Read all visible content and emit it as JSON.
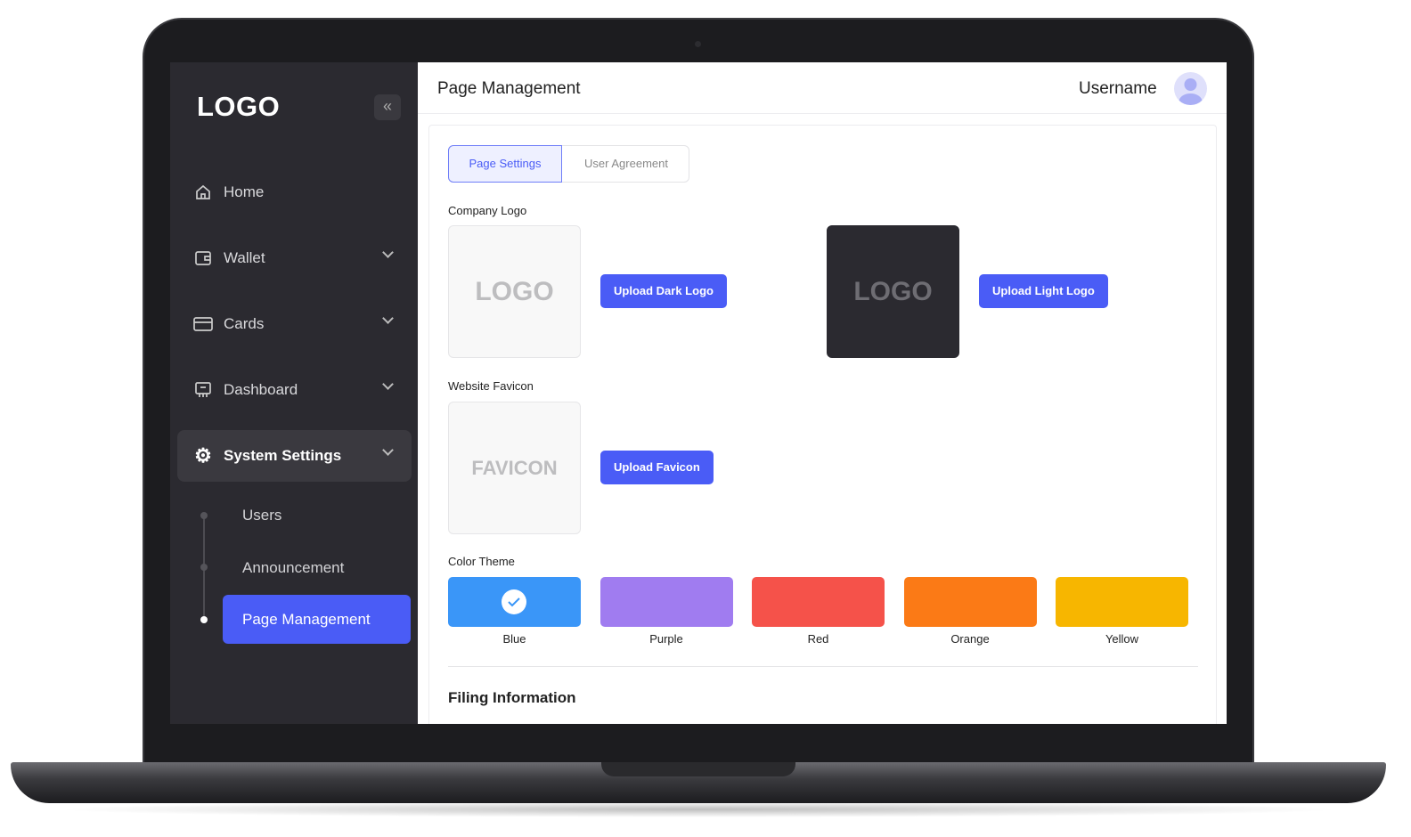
{
  "sidebar": {
    "logo": "LOGO",
    "collapse_icon": "double-chevron-left-icon",
    "items": [
      {
        "label": "Home",
        "icon": "home-icon"
      },
      {
        "label": "Wallet",
        "icon": "wallet-icon"
      },
      {
        "label": "Cards",
        "icon": "credit-card-icon"
      },
      {
        "label": "Dashboard",
        "icon": "presentation-board-icon"
      },
      {
        "label": "System Settings",
        "icon": "gear-icon",
        "expanded": true
      }
    ],
    "subitems": [
      {
        "label": "Users"
      },
      {
        "label": "Announcement"
      },
      {
        "label": "Page Management",
        "active": true
      }
    ]
  },
  "header": {
    "title": "Page Management",
    "username": "Username"
  },
  "tabs": [
    {
      "label": "Page Settings",
      "active": true
    },
    {
      "label": "User Agreement"
    }
  ],
  "company_logo": {
    "label": "Company Logo",
    "preview_text": "LOGO",
    "upload_dark": "Upload Dark Logo",
    "upload_light": "Upload Light Logo"
  },
  "favicon": {
    "label": "Website Favicon",
    "preview_text": "FAVICON",
    "upload": "Upload Favicon"
  },
  "color_theme": {
    "label": "Color Theme",
    "selected": "Blue",
    "options": [
      {
        "name": "Blue",
        "color": "#3a96f8"
      },
      {
        "name": "Purple",
        "color": "#a07cf0"
      },
      {
        "name": "Red",
        "color": "#f5524a"
      },
      {
        "name": "Orange",
        "color": "#fb7a16"
      },
      {
        "name": "Yellow",
        "color": "#f7b600"
      }
    ]
  },
  "filing_information": {
    "title": "Filing Information"
  },
  "colors": {
    "accent": "#4a5cf6",
    "sidebar": "#2b2a30"
  }
}
